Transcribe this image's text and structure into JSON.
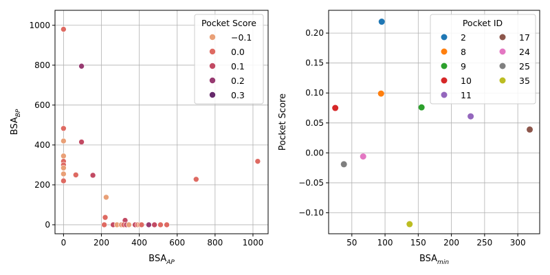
{
  "chart_data": [
    {
      "type": "scatter",
      "xlabel": "BSA",
      "xlabel_sub": "AP",
      "ylabel": "BSA",
      "ylabel_sub": "BP",
      "xlim": [
        -45,
        1080
      ],
      "ylim": [
        -45,
        1075
      ],
      "xticks": [
        0,
        200,
        400,
        600,
        800,
        1000
      ],
      "yticks": [
        0,
        200,
        400,
        600,
        800,
        1000
      ],
      "grid": true,
      "legend": {
        "title": "Pocket Score",
        "placement": "top-right",
        "entries": [
          {
            "label": "−0.1",
            "color": "#e9a077"
          },
          {
            "label": "0.0",
            "color": "#de6a62"
          },
          {
            "label": "0.1",
            "color": "#c24a63"
          },
          {
            "label": "0.2",
            "color": "#973a71"
          },
          {
            "label": "0.3",
            "color": "#662a6b"
          }
        ]
      },
      "points": [
        {
          "x": 0,
          "y": 980,
          "score": 0.0
        },
        {
          "x": 95,
          "y": 795,
          "score": 0.2
        },
        {
          "x": 0,
          "y": 483,
          "score": 0.0
        },
        {
          "x": 0,
          "y": 420,
          "score": -0.1
        },
        {
          "x": 95,
          "y": 415,
          "score": 0.1
        },
        {
          "x": 0,
          "y": 345,
          "score": -0.1
        },
        {
          "x": 0,
          "y": 318,
          "score": 0.0
        },
        {
          "x": 0,
          "y": 300,
          "score": 0.0
        },
        {
          "x": 0,
          "y": 285,
          "score": -0.1
        },
        {
          "x": 0,
          "y": 255,
          "score": -0.1
        },
        {
          "x": 65,
          "y": 250,
          "score": 0.0
        },
        {
          "x": 155,
          "y": 248,
          "score": 0.1
        },
        {
          "x": 0,
          "y": 220,
          "score": 0.0
        },
        {
          "x": 225,
          "y": 138,
          "score": -0.1
        },
        {
          "x": 220,
          "y": 37,
          "score": 0.0
        },
        {
          "x": 325,
          "y": 22,
          "score": 0.1
        },
        {
          "x": 700,
          "y": 228,
          "score": 0.0
        },
        {
          "x": 1025,
          "y": 318,
          "score": 0.0
        },
        {
          "x": 215,
          "y": 0,
          "score": 0.0
        },
        {
          "x": 262,
          "y": 0,
          "score": 0.1
        },
        {
          "x": 282,
          "y": 0,
          "score": -0.1
        },
        {
          "x": 305,
          "y": 0,
          "score": -0.1
        },
        {
          "x": 318,
          "y": 0,
          "score": 0.0
        },
        {
          "x": 332,
          "y": 0,
          "score": 0.1
        },
        {
          "x": 345,
          "y": 0,
          "score": -0.1
        },
        {
          "x": 378,
          "y": 0,
          "score": 0.1
        },
        {
          "x": 392,
          "y": 0,
          "score": 0.0
        },
        {
          "x": 402,
          "y": 0,
          "score": -0.1
        },
        {
          "x": 412,
          "y": 0,
          "score": 0.0
        },
        {
          "x": 450,
          "y": 0,
          "score": 0.2
        },
        {
          "x": 480,
          "y": 0,
          "score": 0.1
        },
        {
          "x": 512,
          "y": 0,
          "score": 0.0
        },
        {
          "x": 545,
          "y": 0,
          "score": 0.0
        }
      ]
    },
    {
      "type": "scatter",
      "xlabel": "BSA",
      "xlabel_sub": "min",
      "ylabel": "Pocket Score",
      "xlim": [
        15,
        333
      ],
      "ylim": [
        -0.135,
        0.238
      ],
      "xticks": [
        50,
        100,
        150,
        200,
        250,
        300
      ],
      "yticks": [
        -0.1,
        -0.05,
        0.0,
        0.05,
        0.1,
        0.15,
        0.2
      ],
      "ytick_labels": [
        "−0.10",
        "−0.05",
        "0.00",
        "0.05",
        "0.10",
        "0.15",
        "0.20"
      ],
      "grid": true,
      "legend": {
        "title": "Pocket ID",
        "placement": "top-right",
        "columns": 2
      },
      "series": [
        {
          "name": "2",
          "color": "#1f77b4",
          "x": [
            95
          ],
          "y": [
            0.219
          ]
        },
        {
          "name": "8",
          "color": "#ff7f0e",
          "x": [
            94
          ],
          "y": [
            0.099
          ]
        },
        {
          "name": "9",
          "color": "#2ca02c",
          "x": [
            155
          ],
          "y": [
            0.076
          ]
        },
        {
          "name": "10",
          "color": "#d62728",
          "x": [
            25
          ],
          "y": [
            0.075
          ]
        },
        {
          "name": "11",
          "color": "#9467bd",
          "x": [
            229
          ],
          "y": [
            0.061
          ]
        },
        {
          "name": "17",
          "color": "#8c564b",
          "x": [
            318
          ],
          "y": [
            0.039
          ]
        },
        {
          "name": "24",
          "color": "#e377c2",
          "x": [
            67
          ],
          "y": [
            -0.006
          ]
        },
        {
          "name": "25",
          "color": "#7f7f7f",
          "x": [
            38
          ],
          "y": [
            -0.019
          ]
        },
        {
          "name": "35",
          "color": "#bcbd22",
          "x": [
            137
          ],
          "y": [
            -0.119
          ]
        }
      ]
    }
  ]
}
